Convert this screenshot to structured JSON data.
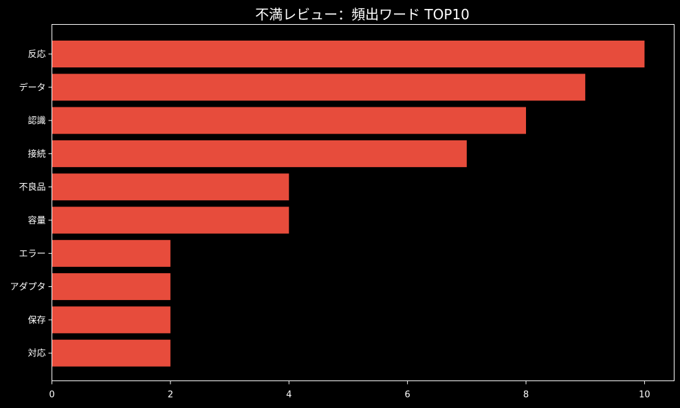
{
  "chart_data": {
    "type": "bar",
    "orientation": "horizontal",
    "title": "不満レビュー：頻出ワード TOP10",
    "xlabel": "",
    "ylabel": "",
    "categories": [
      "反応",
      "データ",
      "認識",
      "接続",
      "不良品",
      "容量",
      "エラー",
      "アダプタ",
      "保存",
      "対応"
    ],
    "values": [
      10,
      9,
      8,
      7,
      4,
      4,
      2,
      2,
      2,
      2
    ],
    "xlim": [
      0,
      10.5
    ],
    "xticks": [
      0,
      2,
      4,
      6,
      8,
      10
    ],
    "grid": false,
    "legend": "none",
    "bar_color": "#e74c3c",
    "background_color": "#000000",
    "axis_color": "#ffffff",
    "text_color": "#ffffff"
  }
}
